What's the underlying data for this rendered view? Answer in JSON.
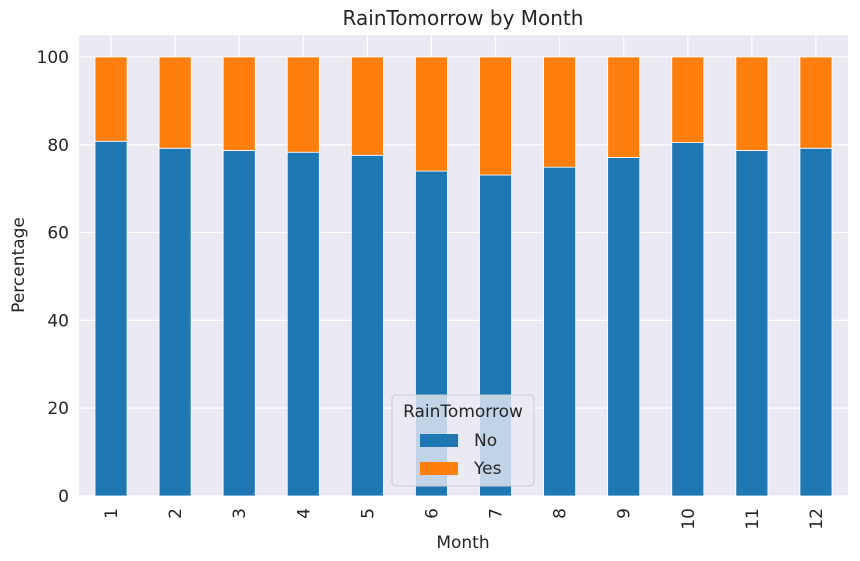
{
  "chart_data": {
    "type": "bar",
    "stacked": true,
    "title": "RainTomorrow by Month",
    "xlabel": "Month",
    "ylabel": "Percentage",
    "categories": [
      "1",
      "2",
      "3",
      "4",
      "5",
      "6",
      "7",
      "8",
      "9",
      "10",
      "11",
      "12"
    ],
    "series": [
      {
        "name": "No",
        "color": "#1f77b4",
        "values": [
          80.8,
          79.2,
          78.7,
          78.3,
          77.6,
          74.0,
          73.1,
          74.9,
          77.1,
          80.5,
          78.7,
          79.2
        ]
      },
      {
        "name": "Yes",
        "color": "#ff7f0e",
        "values": [
          19.2,
          20.8,
          21.3,
          21.7,
          22.4,
          26.0,
          26.9,
          25.1,
          22.9,
          19.5,
          21.3,
          20.8
        ]
      }
    ],
    "ylim": [
      0,
      105
    ],
    "yticks": [
      0,
      20,
      40,
      60,
      80,
      100
    ],
    "grid": true,
    "legend": {
      "title": "RainTomorrow",
      "position": "lower-center"
    }
  }
}
